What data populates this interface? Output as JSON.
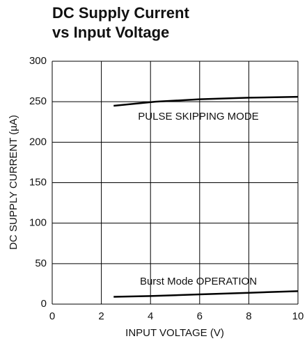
{
  "chart_data": {
    "type": "line",
    "title": [
      "DC Supply Current",
      "vs Input Voltage"
    ],
    "x_label": "INPUT VOLTAGE (V)",
    "y_label": "DC SUPPLY CURRENT (µA)",
    "xlim": [
      0,
      10
    ],
    "xticks": [
      0,
      2,
      4,
      6,
      8,
      10
    ],
    "ylim": [
      0,
      300
    ],
    "yticks": [
      0,
      50,
      100,
      150,
      200,
      250,
      300
    ],
    "grid": true,
    "series": [
      {
        "name": "PULSE SKIPPING MODE",
        "color": "#000000",
        "x": [
          2.5,
          4.2,
          6,
          8,
          10
        ],
        "values": [
          245,
          250,
          253,
          255,
          256
        ]
      },
      {
        "name": "Burst Mode OPERATION",
        "color": "#000000",
        "x": [
          2.5,
          4,
          6,
          8,
          10
        ],
        "values": [
          9,
          10,
          12,
          14,
          16
        ]
      }
    ]
  }
}
